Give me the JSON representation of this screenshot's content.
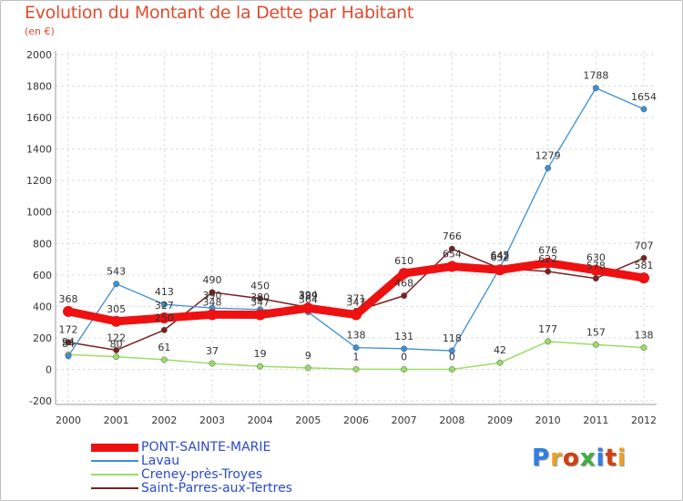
{
  "chart_data": {
    "type": "line",
    "title": "Evolution du Montant de la Dette par Habitant",
    "subtitle": "(en €)",
    "x": [
      "2000",
      "2001",
      "2002",
      "2003",
      "2004",
      "2005",
      "2006",
      "2007",
      "2008",
      "2009",
      "2010",
      "2011",
      "2012"
    ],
    "ylim": [
      -200,
      2000
    ],
    "yticks": [
      "-200",
      "0",
      "200",
      "400",
      "600",
      "800",
      "1000",
      "1200",
      "1400",
      "1600",
      "1800",
      "2000"
    ],
    "grid": true,
    "legend_position": "bottom-left",
    "series": [
      {
        "name": "PONT-SAINTE-MARIE",
        "color": "#ee1111",
        "values": [
          368,
          305,
          327,
          348,
          347,
          389,
          347,
          610,
          654,
          632,
          676,
          630,
          581
        ],
        "labels": [
          "368",
          "305",
          "327",
          "348",
          "347",
          "389",
          "347",
          "610",
          "654",
          "632",
          "676",
          "630",
          "581"
        ]
      },
      {
        "name": "Lavau",
        "color": "#3d8fd6",
        "values": [
          84,
          543,
          413,
          390,
          380,
          364,
          138,
          131,
          118,
          645,
          1279,
          1788,
          1654
        ],
        "labels": [
          "84",
          "543",
          "413",
          "390",
          "380",
          "364",
          "138",
          "131",
          "118",
          "645",
          "1279",
          "1788",
          "1654"
        ]
      },
      {
        "name": "Creney-près-Troyes",
        "color": "#99dd66",
        "values": [
          94,
          80,
          61,
          37,
          19,
          9,
          1,
          0,
          0,
          42,
          177,
          157,
          138
        ],
        "labels": [
          "94",
          "80",
          "61",
          "37",
          "19",
          "9",
          "1",
          "0",
          "0",
          "42",
          "177",
          "157",
          "138"
        ]
      },
      {
        "name": "Saint-Parres-aux-Tertres",
        "color": "#7a2020",
        "values": [
          172,
          122,
          250,
          490,
          450,
          394,
          371,
          468,
          766,
          642,
          622,
          578,
          707
        ],
        "labels": [
          "172",
          "122",
          "250",
          "490",
          "450",
          "394",
          "371",
          "468",
          "766",
          "642",
          "622",
          "578",
          "707"
        ]
      }
    ]
  },
  "logo": {
    "text": "Proxiti",
    "colors": [
      "#2f7fe0",
      "#f0a020",
      "#d04010",
      "#40b040",
      "#2f7fe0",
      "#d04010",
      "#f0a020"
    ]
  }
}
